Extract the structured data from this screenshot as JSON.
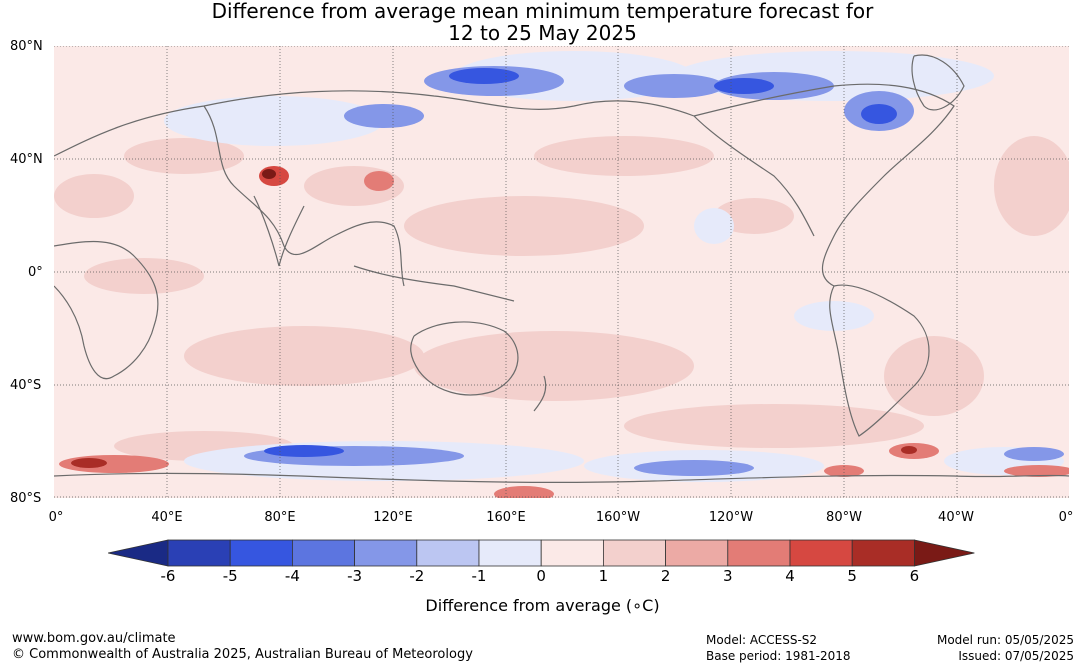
{
  "title_line1": "Difference from average mean minimum temperature forecast for",
  "title_line2": "12 to 25 May 2025",
  "lat_labels": [
    "80°N",
    "40°N",
    "0°",
    "40°S",
    "80°S"
  ],
  "lon_labels": [
    "0°",
    "40°E",
    "80°E",
    "120°E",
    "160°E",
    "160°W",
    "120°W",
    "80°W",
    "40°W",
    "0°"
  ],
  "colorbar": {
    "ticks": [
      "-6",
      "-5",
      "-4",
      "-3",
      "-2",
      "-1",
      "0",
      "1",
      "2",
      "3",
      "4",
      "5",
      "6"
    ],
    "colors": [
      "#1a2a85",
      "#2a40b5",
      "#3656e0",
      "#5c75e0",
      "#8497e8",
      "#bcc6f2",
      "#e6eafa",
      "#fbe9e7",
      "#f3d0cd",
      "#ecaaa5",
      "#e37c76",
      "#d64841",
      "#a92d26",
      "#7a1a16"
    ],
    "label": "Difference from average (∘C)"
  },
  "footer": {
    "url": "www.bom.gov.au/climate",
    "copyright": "© Commonwealth of Australia 2025, Australian Bureau of Meteorology",
    "model": "Model: ACCESS-S2",
    "base_period": "Base period: 1981-2018",
    "model_run": "Model run: 05/05/2025",
    "issued": "Issued: 07/05/2025"
  }
}
